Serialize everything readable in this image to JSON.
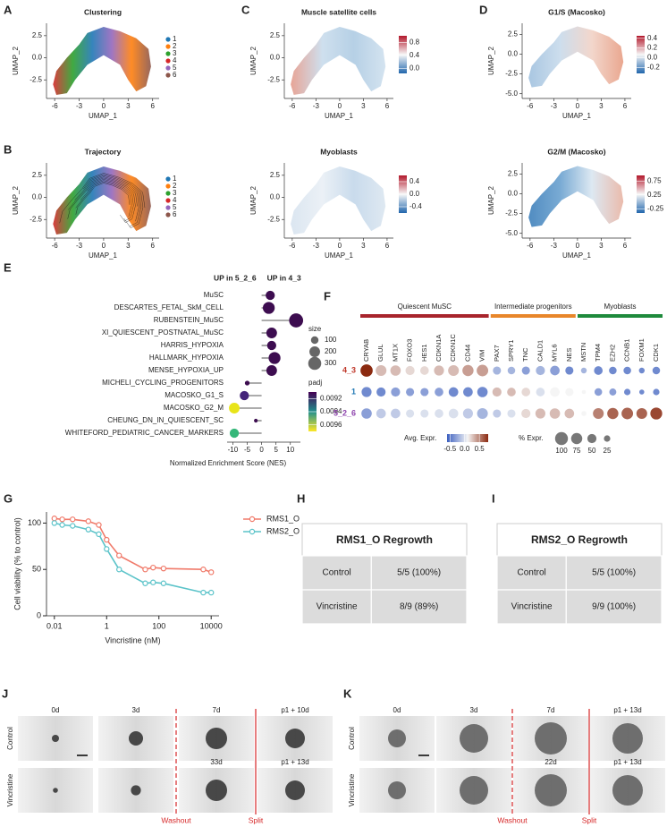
{
  "chart_data": [
    {
      "type": "scatter",
      "panel": "A",
      "title": "Clustering",
      "xlabel": "UMAP_1",
      "ylabel": "UMAP_2",
      "xlim": [
        -7,
        6.8
      ],
      "ylim": [
        -4.6,
        3.9
      ],
      "xticks": [
        -6,
        -3,
        0,
        3,
        6
      ],
      "yticks": [
        2.5,
        {
          "value": 0,
          "label": "0.0"
        },
        -2.5
      ],
      "clusters": [
        {
          "name": "1",
          "color": "#1f77b4"
        },
        {
          "name": "2",
          "color": "#ff7f0e"
        },
        {
          "name": "3",
          "color": "#2ca02c"
        },
        {
          "name": "4",
          "color": "#d62728"
        },
        {
          "name": "5",
          "color": "#9467bd"
        },
        {
          "name": "6",
          "color": "#8c564b"
        }
      ]
    },
    {
      "type": "scatter",
      "panel": "B",
      "title": "Trajectory",
      "xlabel": "UMAP_1",
      "ylabel": "UMAP_2",
      "xlim": [
        -7,
        6.8
      ],
      "ylim": [
        -4.6,
        3.9
      ],
      "xticks": [
        -6,
        -3,
        0,
        3,
        6
      ],
      "yticks": [
        2.5,
        {
          "value": 0,
          "label": "0.0"
        },
        -2.5
      ],
      "clusters": [
        {
          "name": "1",
          "color": "#1f77b4"
        },
        {
          "name": "2",
          "color": "#ff7f0e"
        },
        {
          "name": "3",
          "color": "#2ca02c"
        },
        {
          "name": "4",
          "color": "#d62728"
        },
        {
          "name": "5",
          "color": "#9467bd"
        },
        {
          "name": "6",
          "color": "#8c564b"
        }
      ]
    },
    {
      "type": "scatter",
      "panel": "C",
      "title": "Muscle satellite cells",
      "xlabel": "UMAP_1",
      "ylabel": "UMAP_2",
      "xlim": [
        -7,
        6.8
      ],
      "ylim": [
        -4.6,
        3.9
      ],
      "xticks": [
        -6,
        -3,
        0,
        3,
        6
      ],
      "yticks": [
        2.5,
        {
          "value": 0,
          "label": "0.0"
        },
        -2.5
      ],
      "colorbar": {
        "lim": [
          -0.15,
          1.0
        ],
        "ticks": [
          0.8,
          0.4,
          {
            "value": 0,
            "label": "0.0"
          }
        ],
        "colors": [
          "#2166ac",
          "#f7f7f7",
          "#b2182b"
        ]
      }
    },
    {
      "type": "scatter",
      "title": "Myoblasts",
      "xlabel": "UMAP_1",
      "ylabel": "UMAP_2",
      "xlim": [
        -7,
        6.8
      ],
      "ylim": [
        -4.6,
        3.9
      ],
      "xticks": [
        -6,
        -3,
        0,
        3,
        6
      ],
      "yticks": [
        2.5,
        {
          "value": 0,
          "label": "0.0"
        },
        -2.5
      ],
      "colorbar": {
        "lim": [
          -0.6,
          0.6
        ],
        "ticks": [
          0.4,
          {
            "value": 0,
            "label": "0.0"
          },
          -0.4
        ],
        "colors": [
          "#2166ac",
          "#f7f7f7",
          "#b2182b"
        ]
      }
    },
    {
      "type": "scatter",
      "panel": "D",
      "title": "G1/S (Macosko)",
      "xlabel": "UMAP_1",
      "ylabel": "UMAP_2",
      "xlim": [
        -7,
        6.8
      ],
      "ylim": [
        -5.6,
        3.9
      ],
      "xticks": [
        -6,
        -3,
        0,
        3,
        6
      ],
      "yticks": [
        2.5,
        {
          "value": 0,
          "label": "0.0"
        },
        -2.5,
        {
          "value": -5,
          "label": "-5.0"
        }
      ],
      "colorbar": {
        "lim": [
          -0.32,
          0.45
        ],
        "ticks": [
          0.4,
          0.2,
          {
            "value": 0,
            "label": "0.0"
          },
          -0.2
        ],
        "colors": [
          "#2166ac",
          "#f7f7f7",
          "#b2182b"
        ]
      }
    },
    {
      "type": "scatter",
      "title": "G2/M (Macosko)",
      "xlabel": "UMAP_1",
      "ylabel": "UMAP_2",
      "xlim": [
        -7,
        6.8
      ],
      "ylim": [
        -5.6,
        3.9
      ],
      "xticks": [
        -6,
        -3,
        0,
        3,
        6
      ],
      "yticks": [
        2.5,
        {
          "value": 0,
          "label": "0.0"
        },
        -2.5,
        {
          "value": -5,
          "label": "-5.0"
        }
      ],
      "colorbar": {
        "lim": [
          -0.4,
          0.95
        ],
        "ticks": [
          0.75,
          0.25,
          -0.25
        ],
        "colors": [
          "#2166ac",
          "#f7f7f7",
          "#b2182b"
        ]
      }
    },
    {
      "type": "lollipop",
      "panel": "E",
      "header_left": "UP in 5_2_6",
      "header_right": "UP in 4_3",
      "xlabel": "Normalized Enrichment Score (NES)",
      "xlim": [
        -12,
        13.5
      ],
      "xticks": [
        -10,
        -5,
        0,
        5,
        10
      ],
      "categories": [
        "MuSC",
        "DESCARTES_FETAL_SkM_CELL",
        "RUBENSTEIN_MuSC",
        "XI_QUIESCENT_POSTNATAL_MuSC",
        "HARRIS_HYPOXIA",
        "HALLMARK_HYPOXIA",
        "MENSE_HYPOXIA_UP",
        "MICHELI_CYCLING_PROGENITORS",
        "MACOSKO_G1_S",
        "MACOSKO_G2_M",
        "CHEUNG_DN_IN_QUIESCENT_SC",
        "WHITEFORD_PEDIATRIC_CANCER_MARKERS"
      ],
      "values": [
        3,
        2.5,
        12,
        3.5,
        3.5,
        4.5,
        3.5,
        -5,
        -6,
        -9.5,
        -2,
        -9.5
      ],
      "sizes": [
        150,
        250,
        350,
        200,
        150,
        250,
        200,
        40,
        150,
        200,
        25,
        150
      ],
      "colors": [
        "#3d0d50",
        "#3d0d50",
        "#3d0d50",
        "#3d0d50",
        "#3d0d50",
        "#3d0d50",
        "#3d0d50",
        "#3d0d50",
        "#45257a",
        "#e8e419",
        "#3d0d50",
        "#35b779"
      ],
      "size_title": "size",
      "size_ticks": [
        100,
        200,
        300
      ],
      "color_title": "padj",
      "color_lim": [
        0.0091,
        0.0097
      ],
      "color_ticks": [
        0.0092,
        0.0094,
        0.0096
      ],
      "color_scale": [
        "#440154",
        "#21908c",
        "#fde725"
      ]
    },
    {
      "type": "dotplot",
      "panel": "F",
      "groups": [
        {
          "name": "Quiescent MuSC",
          "color": "#a8242c",
          "genes": [
            "CRYAB",
            "GLUL",
            "MT1X",
            "FOXO3",
            "HES1",
            "CDKN1A",
            "CDKN1C",
            "CD44",
            "VIM"
          ]
        },
        {
          "name": "Intermediate progenitors",
          "color": "#e8862a",
          "genes": [
            "PAX7",
            "SPRY1",
            "TNC",
            "CALD1",
            "MYL6",
            "NES"
          ]
        },
        {
          "name": "Myoblasts",
          "color": "#1e8a3c",
          "genes": [
            "MSTN",
            "TPM4",
            "EZH2",
            "CCNB1",
            "FOXM1",
            "CDK1"
          ]
        }
      ],
      "rows": [
        {
          "name": "4_3",
          "color": "#c0392b",
          "expr": [
            0.8,
            0.3,
            0.3,
            0.2,
            0.2,
            0.3,
            0.3,
            0.4,
            0.4,
            -0.2,
            -0.2,
            -0.3,
            -0.2,
            -0.3,
            -0.4,
            -0.2,
            -0.4,
            -0.4,
            -0.4,
            -0.4,
            -0.4
          ],
          "pct": [
            90,
            70,
            65,
            50,
            45,
            60,
            70,
            75,
            80,
            40,
            35,
            40,
            50,
            55,
            40,
            20,
            45,
            35,
            35,
            20,
            35
          ]
        },
        {
          "name": "1",
          "color": "#1f77b4",
          "expr": [
            -0.4,
            -0.4,
            -0.3,
            -0.3,
            -0.3,
            -0.3,
            -0.4,
            -0.4,
            -0.4,
            0.3,
            0.3,
            0.2,
            0,
            0.1,
            0.1,
            0.1,
            -0.3,
            -0.3,
            -0.4,
            -0.4,
            -0.4
          ],
          "pct": [
            60,
            50,
            50,
            40,
            40,
            45,
            55,
            55,
            65,
            50,
            45,
            45,
            45,
            55,
            40,
            10,
            35,
            30,
            25,
            15,
            25
          ]
        },
        {
          "name": "5_2_6",
          "color": "#8e44ad",
          "expr": [
            -0.3,
            -0.1,
            -0.1,
            0,
            0,
            0,
            0,
            -0.1,
            -0.2,
            -0.1,
            0,
            0.2,
            0.3,
            0.3,
            0.3,
            0.1,
            0.5,
            0.6,
            0.6,
            0.6,
            0.7
          ],
          "pct": [
            65,
            55,
            55,
            40,
            40,
            45,
            55,
            60,
            70,
            40,
            40,
            50,
            60,
            65,
            55,
            15,
            70,
            75,
            80,
            70,
            85
          ]
        }
      ],
      "expr_title": "Avg. Expr.",
      "expr_lim": [
        -0.6,
        0.8
      ],
      "expr_ticks": [
        -0.5,
        {
          "value": 0,
          "label": "0.0"
        },
        0.5
      ],
      "expr_colors": [
        "#3b5fc0",
        "#f5f5f5",
        "#8b2a10"
      ],
      "pct_title": "% Expr.",
      "pct_ticks": [
        100,
        75,
        50,
        25
      ]
    },
    {
      "type": "line",
      "panel": "G",
      "xlabel": "Vincristine (nM)",
      "ylabel": "Cell viability (% to control)",
      "log_x": true,
      "x": [
        0.01,
        0.02,
        0.05,
        0.2,
        0.5,
        1,
        3,
        30,
        60,
        150,
        5000,
        10000
      ],
      "xlim": [
        0.005,
        20000
      ],
      "xticks": [
        0.01,
        1,
        100,
        10000
      ],
      "ylim": [
        0,
        112
      ],
      "yticks": [
        0,
        50,
        100
      ],
      "series": [
        {
          "name": "RMS1_O",
          "color": "#f07a6a",
          "values": [
            105,
            104,
            104,
            102,
            98,
            82,
            65,
            50,
            52,
            51,
            50,
            47
          ]
        },
        {
          "name": "RMS2_O",
          "color": "#5bc3c9",
          "values": [
            100,
            98,
            97,
            93,
            88,
            72,
            50,
            35,
            36,
            35,
            25,
            25
          ]
        }
      ]
    }
  ],
  "tables": [
    {
      "panel": "H",
      "title": "RMS1_O Regrowth",
      "rows": [
        [
          "Control",
          "5/5 (100%)"
        ],
        [
          "Vincristine",
          "8/9 (89%)"
        ]
      ]
    },
    {
      "panel": "I",
      "title": "RMS2_O Regrowth",
      "rows": [
        [
          "Control",
          "5/5 (100%)"
        ],
        [
          "Vincristine",
          "9/9 (100%)"
        ]
      ]
    }
  ],
  "images": [
    {
      "panel": "J",
      "rows": [
        {
          "label": "Control",
          "timepoints": [
            "0d",
            "3d",
            "7d",
            "p1 + 10d"
          ]
        },
        {
          "label": "Vincristine",
          "timepoints": [
            null,
            null,
            "33d",
            "p1 + 13d"
          ]
        }
      ],
      "markers": [
        "Washout",
        "Split"
      ]
    },
    {
      "panel": "K",
      "rows": [
        {
          "label": "Control",
          "timepoints": [
            "0d",
            "3d",
            "7d",
            "p1 + 13d"
          ]
        },
        {
          "label": "Vincristine",
          "timepoints": [
            null,
            null,
            "22d",
            "p1 + 13d"
          ]
        }
      ],
      "markers": [
        "Washout",
        "Split"
      ]
    }
  ]
}
